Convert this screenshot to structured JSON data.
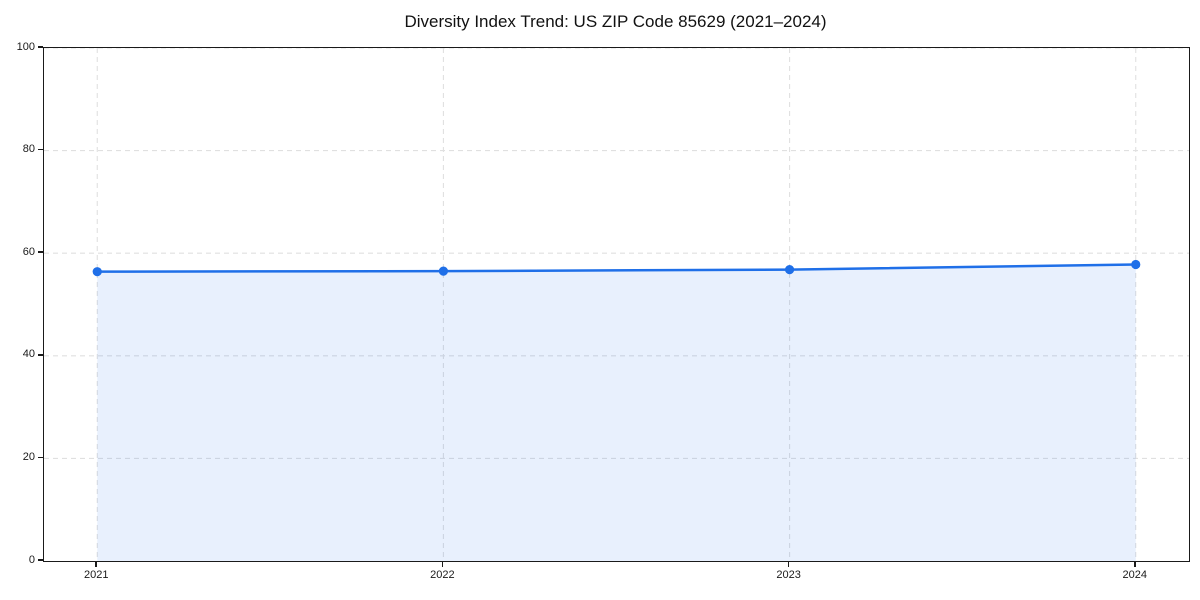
{
  "title": "Diversity Index Trend: US ZIP Code 85629 (2021–2024)",
  "chart_data": {
    "type": "area",
    "title": "Diversity Index Trend: US ZIP Code 85629 (2021–2024)",
    "categories": [
      "2021",
      "2022",
      "2023",
      "2024"
    ],
    "series": [
      {
        "name": "Diversity Index",
        "values": [
          56.4,
          56.5,
          56.8,
          57.8
        ]
      }
    ],
    "xlabel": "",
    "ylabel": "",
    "ylim": [
      0,
      100
    ],
    "yticks": [
      0,
      20,
      40,
      60,
      80,
      100
    ],
    "grid": true,
    "grid_style": "dashed",
    "legend": "none",
    "markers": true,
    "colors": {
      "line": "#1f6fe8",
      "marker": "#1f6fe8",
      "fill": "#1f6fe8",
      "fill_opacity": "0.1",
      "grid": "#e0e0e0",
      "spine": "#1a1a1a",
      "text": "#1a1a1a"
    }
  }
}
